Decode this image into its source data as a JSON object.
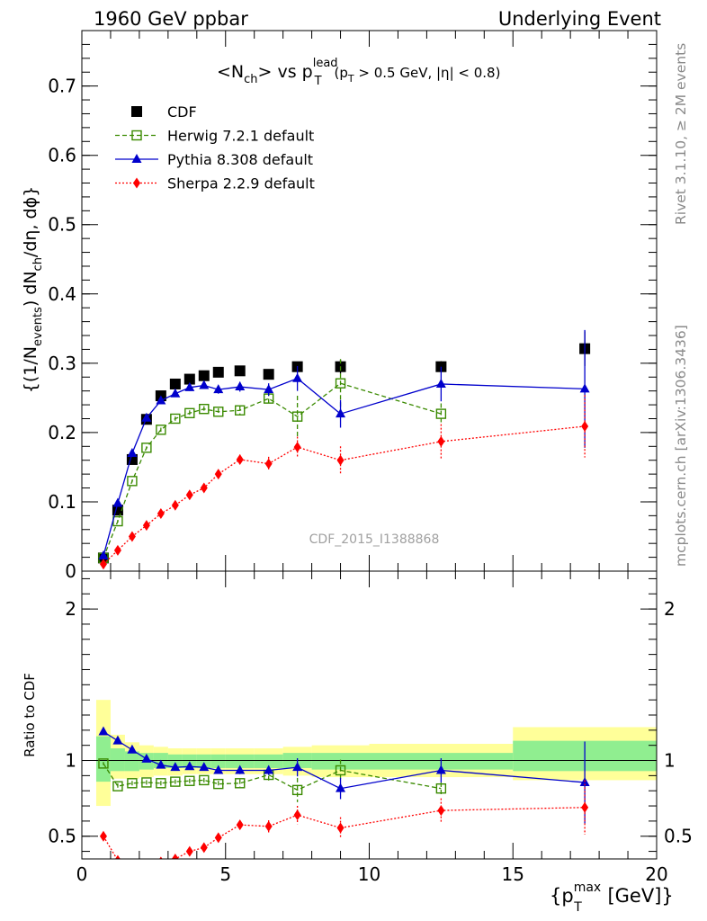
{
  "header": {
    "left": "1960 GeV ppbar",
    "right": "Underlying Event"
  },
  "side_labels": {
    "top": "Rivet 3.1.10, ≥ 2M events",
    "bottom": "mcplots.cern.ch [arXiv:1306.3436]"
  },
  "watermark": "CDF_2015_I1388868",
  "chart_data": [
    {
      "type": "scatter",
      "title": "<Nch> vs pT^lead (pT > 0.5 GeV, |η| < 0.8)",
      "title_parts": {
        "a": "<N",
        "a_sub": "ch",
        "b": "> vs p",
        "b_sub": "T",
        "b_sup": "lead",
        "c": "(p",
        "c_sub": "T",
        "d": " > 0.5 GeV, |η| < 0.8)"
      },
      "ylabel": "{(1/N_events) dN_ch/dη, dϕ}",
      "ylabel_parts": {
        "a": "{(1/N",
        "a_sub": "events",
        "b": ") dN",
        "b_sub": "ch",
        "c": "/dη, dϕ}"
      },
      "xlim": [
        0,
        20
      ],
      "ylim": [
        0,
        0.78
      ],
      "yticks": [
        "0",
        "0.1",
        "0.2",
        "0.3",
        "0.4",
        "0.5",
        "0.6",
        "0.7"
      ],
      "legend_position": "top-left",
      "series": [
        {
          "name": "CDF",
          "color": "#000000",
          "style": "square-filled",
          "x": [
            0.75,
            1.25,
            1.75,
            2.25,
            2.75,
            3.25,
            3.75,
            4.25,
            4.75,
            5.5,
            6.5,
            7.5,
            9.0,
            12.5,
            17.5
          ],
          "y": [
            0.019,
            0.088,
            0.161,
            0.219,
            0.253,
            0.27,
            0.277,
            0.282,
            0.287,
            0.289,
            0.284,
            0.295,
            0.295,
            0.295,
            0.321
          ],
          "err": [
            0.001,
            0.002,
            0.003,
            0.003,
            0.003,
            0.003,
            0.003,
            0.003,
            0.003,
            0.004,
            0.005,
            0.006,
            0.01,
            0.008,
            0.025
          ]
        },
        {
          "name": "Herwig 7.2.1 default",
          "color": "#3a8a00",
          "style": "square-open-dashed",
          "x": [
            0.75,
            1.25,
            1.75,
            2.25,
            2.75,
            3.25,
            3.75,
            4.25,
            4.75,
            5.5,
            6.5,
            7.5,
            9.0,
            12.5
          ],
          "y": [
            0.019,
            0.072,
            0.13,
            0.178,
            0.204,
            0.22,
            0.228,
            0.234,
            0.23,
            0.232,
            0.249,
            0.223,
            0.271,
            0.227
          ],
          "err": [
            0.001,
            0.002,
            0.002,
            0.002,
            0.003,
            0.003,
            0.004,
            0.004,
            0.005,
            0.006,
            0.01,
            0.03,
            0.035,
            0.015
          ]
        },
        {
          "name": "Pythia 8.308 default",
          "color": "#0000cc",
          "style": "triangle-solid",
          "x": [
            0.75,
            1.25,
            1.75,
            2.25,
            2.75,
            3.25,
            3.75,
            4.25,
            4.75,
            5.5,
            6.5,
            7.5,
            9.0,
            12.5,
            17.5
          ],
          "y": [
            0.022,
            0.098,
            0.17,
            0.221,
            0.246,
            0.256,
            0.265,
            0.268,
            0.262,
            0.266,
            0.262,
            0.278,
            0.227,
            0.27,
            0.263
          ],
          "err": [
            0.001,
            0.002,
            0.003,
            0.003,
            0.004,
            0.004,
            0.005,
            0.005,
            0.006,
            0.007,
            0.009,
            0.018,
            0.02,
            0.025,
            0.085
          ]
        },
        {
          "name": "Sherpa 2.2.9 default",
          "color": "#ff0000",
          "style": "diamond-dotted",
          "x": [
            0.75,
            1.25,
            1.75,
            2.25,
            2.75,
            3.25,
            3.75,
            4.25,
            4.75,
            5.5,
            6.5,
            7.5,
            9.0,
            12.5,
            17.5
          ],
          "y": [
            0.01,
            0.03,
            0.05,
            0.066,
            0.083,
            0.095,
            0.11,
            0.12,
            0.14,
            0.161,
            0.155,
            0.179,
            0.16,
            0.187,
            0.209
          ],
          "err": [
            0.001,
            0.002,
            0.002,
            0.003,
            0.003,
            0.004,
            0.004,
            0.005,
            0.006,
            0.007,
            0.01,
            0.015,
            0.02,
            0.025,
            0.045
          ]
        }
      ]
    },
    {
      "type": "scatter",
      "ylabel": "Ratio to CDF",
      "xlabel": "{pT^max [GeV]}",
      "xlabel_parts": {
        "a": "{p",
        "a_sub": "T",
        "a_sup": "max",
        "b": " [GeV]}"
      },
      "xlim": [
        0,
        20
      ],
      "ylim": [
        0.35,
        2.25
      ],
      "xticks": [
        "0",
        "5",
        "10",
        "15",
        "20"
      ],
      "yticks": [
        "0.5",
        "1",
        "2"
      ],
      "bands": {
        "x_edges": [
          0.5,
          1.0,
          1.5,
          2.0,
          2.5,
          3.0,
          3.5,
          4.0,
          4.5,
          5.0,
          6.0,
          7.0,
          8.0,
          10.0,
          15.0,
          20.0
        ],
        "yellow_low": [
          0.7,
          0.88,
          0.88,
          0.89,
          0.9,
          0.9,
          0.91,
          0.91,
          0.91,
          0.91,
          0.91,
          0.9,
          0.89,
          0.89,
          0.87
        ],
        "yellow_high": [
          1.4,
          1.17,
          1.12,
          1.1,
          1.09,
          1.08,
          1.08,
          1.08,
          1.08,
          1.08,
          1.08,
          1.09,
          1.1,
          1.11,
          1.22
        ],
        "green_low": [
          0.86,
          0.93,
          0.93,
          0.94,
          0.95,
          0.95,
          0.95,
          0.95,
          0.95,
          0.95,
          0.95,
          0.95,
          0.94,
          0.94,
          0.93
        ],
        "green_high": [
          1.16,
          1.08,
          1.06,
          1.05,
          1.05,
          1.04,
          1.04,
          1.04,
          1.04,
          1.04,
          1.04,
          1.05,
          1.05,
          1.05,
          1.13
        ]
      },
      "series": [
        {
          "name": "Herwig 7.2.1 default",
          "color": "#3a8a00",
          "style": "square-open-dashed",
          "x": [
            0.75,
            1.25,
            1.75,
            2.25,
            2.75,
            3.25,
            3.75,
            4.25,
            4.75,
            5.5,
            6.5,
            7.5,
            9.0,
            12.5
          ],
          "y": [
            0.98,
            0.83,
            0.85,
            0.855,
            0.85,
            0.86,
            0.865,
            0.87,
            0.845,
            0.85,
            0.905,
            0.805,
            0.935,
            0.815
          ],
          "err": [
            0.01,
            0.02,
            0.015,
            0.015,
            0.015,
            0.015,
            0.015,
            0.015,
            0.02,
            0.025,
            0.04,
            0.08,
            0.07,
            0.04
          ]
        },
        {
          "name": "Pythia 8.308 default",
          "color": "#0000cc",
          "style": "triangle-solid",
          "x": [
            0.75,
            1.25,
            1.75,
            2.25,
            2.75,
            3.25,
            3.75,
            4.25,
            4.75,
            5.5,
            6.5,
            7.5,
            9.0,
            12.5,
            17.5
          ],
          "y": [
            1.19,
            1.13,
            1.07,
            1.01,
            0.97,
            0.955,
            0.96,
            0.955,
            0.935,
            0.935,
            0.935,
            0.955,
            0.815,
            0.935,
            0.855
          ],
          "err": [
            0.01,
            0.015,
            0.015,
            0.015,
            0.015,
            0.015,
            0.015,
            0.02,
            0.02,
            0.025,
            0.03,
            0.06,
            0.07,
            0.08,
            0.27
          ]
        },
        {
          "name": "Sherpa 2.2.9 default",
          "color": "#ff0000",
          "style": "diamond-dotted",
          "x": [
            0.75,
            1.25,
            1.75,
            2.25,
            2.75,
            3.25,
            3.75,
            4.25,
            4.75,
            5.5,
            6.5,
            7.5,
            9.0,
            12.5,
            17.5
          ],
          "y": [
            0.5,
            0.34,
            0.31,
            0.3,
            0.33,
            0.35,
            0.4,
            0.425,
            0.49,
            0.575,
            0.565,
            0.64,
            0.555,
            0.67,
            0.69
          ],
          "err": [
            0.01,
            0.01,
            0.01,
            0.01,
            0.015,
            0.015,
            0.02,
            0.02,
            0.025,
            0.03,
            0.04,
            0.06,
            0.07,
            0.08,
            0.18
          ]
        }
      ]
    }
  ]
}
